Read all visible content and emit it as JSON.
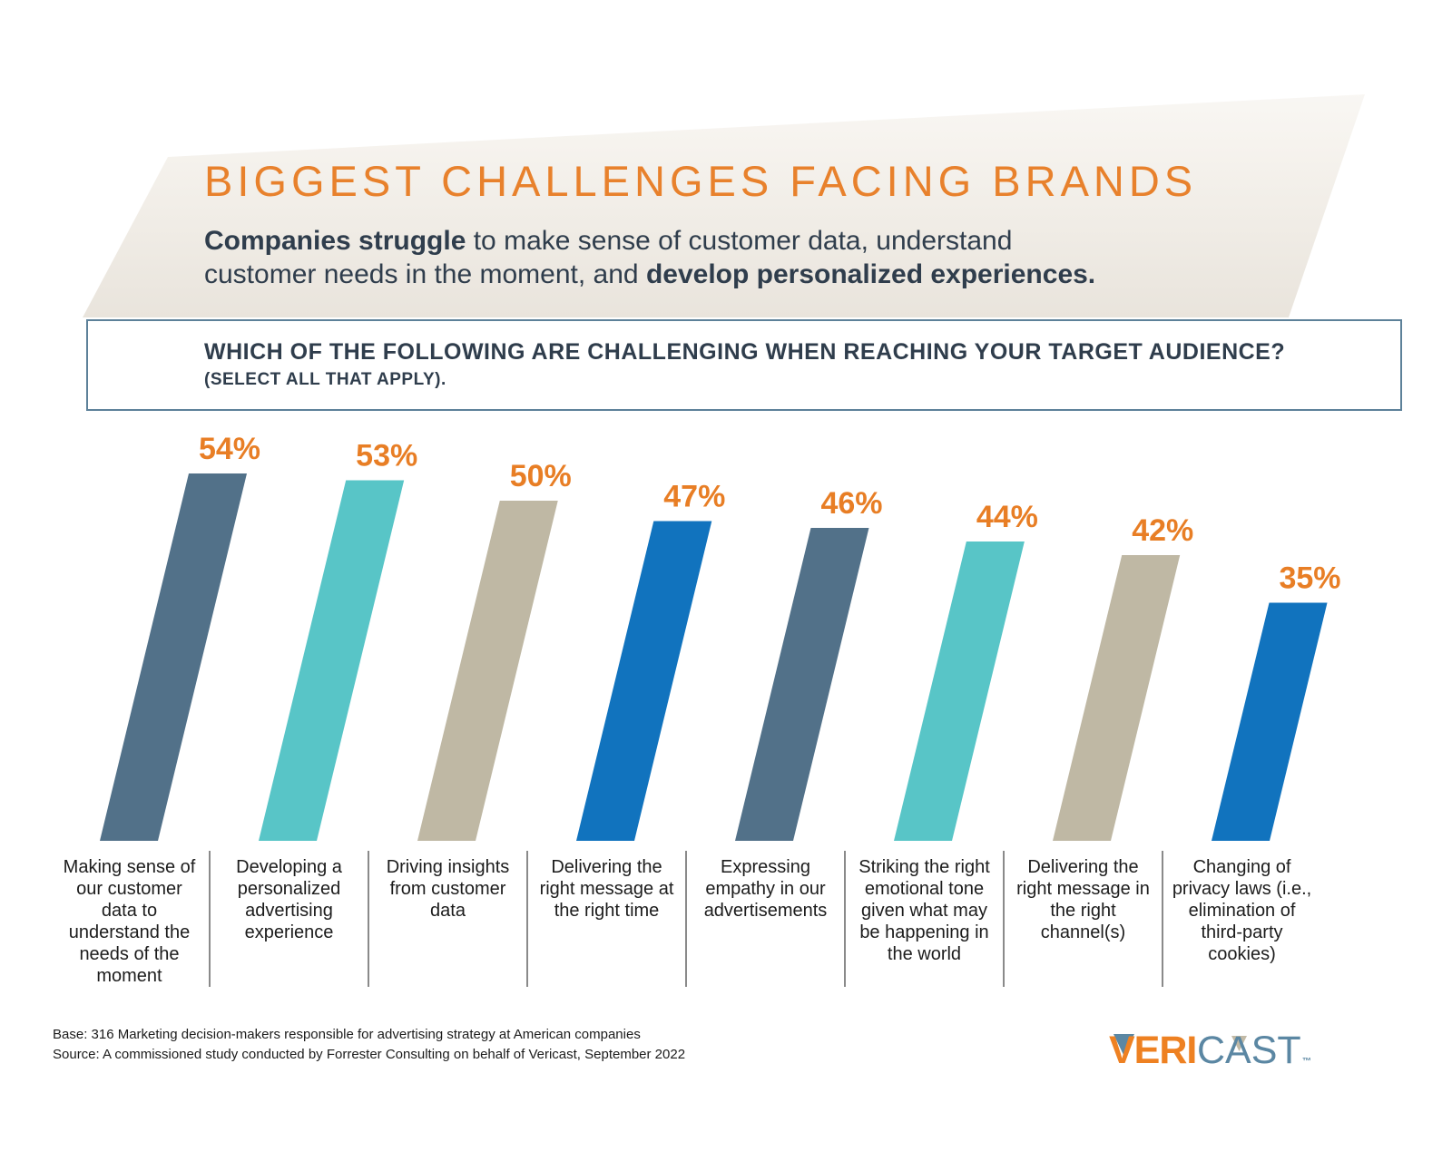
{
  "header": {
    "title": "BIGGEST CHALLENGES FACING BRANDS",
    "subtitle_line1_bold": "Companies struggle",
    "subtitle_line1_rest": " to make sense of customer data, understand",
    "subtitle_line2_rest": "customer needs in the moment, and ",
    "subtitle_line2_bold": "develop personalized experiences."
  },
  "question": {
    "line1": "WHICH OF THE FOLLOWING ARE CHALLENGING WHEN REACHING YOUR TARGET AUDIENCE?",
    "line2": "(SELECT ALL THAT APPLY)."
  },
  "chart_data": {
    "type": "bar",
    "style": "slanted-parallelogram-bars",
    "title": "WHICH OF THE FOLLOWING ARE CHALLENGING WHEN REACHING YOUR TARGET AUDIENCE? (SELECT ALL THAT APPLY).",
    "unit": "%",
    "values": [
      54,
      53,
      50,
      47,
      46,
      44,
      42,
      35
    ],
    "value_labels": [
      "54%",
      "53%",
      "50%",
      "47%",
      "46%",
      "44%",
      "42%",
      "35%"
    ],
    "categories": [
      [
        "Making sense of",
        "our customer",
        "data to",
        "understand the",
        "needs of the",
        "moment"
      ],
      [
        "Developing a",
        "personalized",
        "advertising",
        "experience"
      ],
      [
        "Driving insights",
        "from customer",
        "data"
      ],
      [
        "Delivering the",
        "right message at",
        "the right time"
      ],
      [
        "Expressing",
        "empathy in our",
        "advertisements"
      ],
      [
        "Striking the right",
        "emotional tone",
        "given what may",
        "be happening in",
        "the world"
      ],
      [
        "Delivering the",
        "right message in",
        "the right",
        "channel(s)"
      ],
      [
        "Changing of",
        "privacy laws (i.e.,",
        "elimination of",
        "third-party",
        "cookies)"
      ]
    ],
    "palette": [
      "#527189",
      "#58C5C7",
      "#BFB8A4",
      "#1173BE"
    ],
    "value_label_color": "#E87E25",
    "ylim": [
      0,
      54
    ],
    "grid": false,
    "legend": "none"
  },
  "footer": {
    "base": "Base: 316 Marketing decision-makers responsible for advertising strategy at American companies",
    "source": "Source: A commissioned study conducted by Forrester Consulting on behalf of Vericast, September 2022"
  },
  "logo": {
    "veri": "VERI",
    "cast": "CAST",
    "tm": "™",
    "orange": "#EE8122",
    "blue": "#5B87A3",
    "tan": "#C2BAA6"
  },
  "colors": {
    "accent_orange": "#E8812C",
    "dark_text": "#2F3D4C",
    "banner_beige": "#E9E4DC",
    "box_border": "#5D8199",
    "divider_gray": "#8A8A8A",
    "label_text": "#1C1C1C"
  }
}
